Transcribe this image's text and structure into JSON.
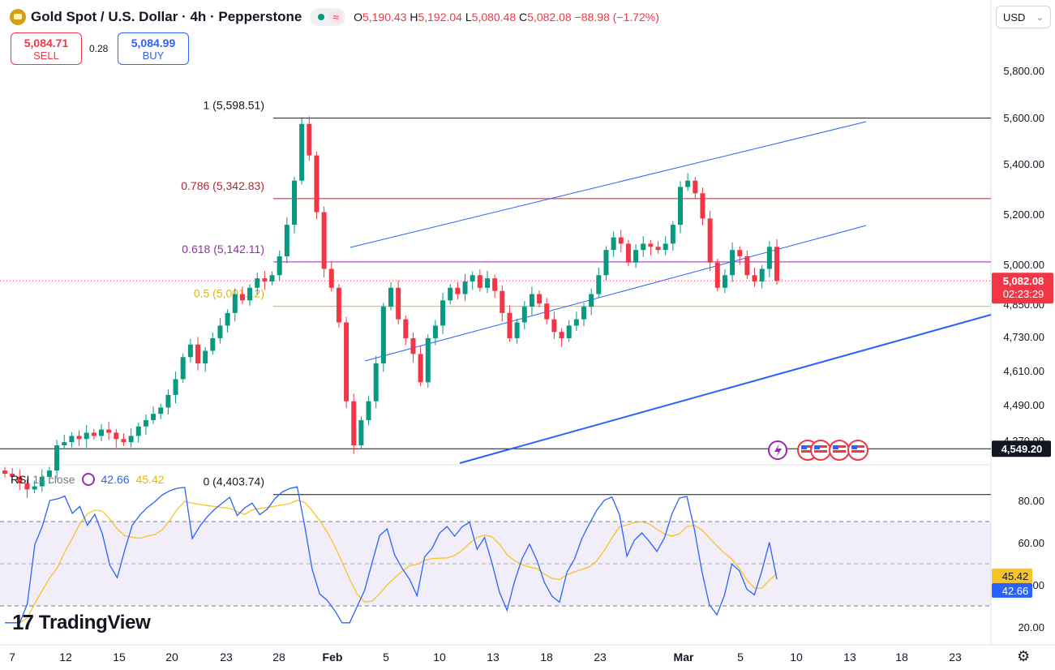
{
  "header": {
    "symbol": "Gold Spot / U.S. Dollar · 4h · Pepperstone",
    "wave_glyph": "≈",
    "open_label": "O",
    "open": "5,190.43",
    "high_label": "H",
    "high": "5,192.04",
    "low_label": "L",
    "low": "5,080.48",
    "close_label": "C",
    "close": "5,082.08",
    "change": "−88.98 (−1.72%)"
  },
  "trade": {
    "sell_price": "5,084.71",
    "sell_label": "SELL",
    "spread": "0.28",
    "buy_price": "5,084.99",
    "buy_label": "BUY"
  },
  "currency": {
    "label": "USD",
    "chevron": "⌄"
  },
  "colors": {
    "up": "#089981",
    "down": "#f23645",
    "rsi": "#2962ff",
    "rsi_ma": "#f7c325",
    "fib_0786": "#b22833",
    "fib_0618": "#9c27b0",
    "fib_05": "#e6b800",
    "channel": "#2962ff"
  },
  "chart_data": {
    "type": "candlestick",
    "x_ticks": [
      "7",
      "12",
      "15",
      "20",
      "23",
      "28",
      "Feb",
      "5",
      "10",
      "13",
      "18",
      "23",
      "Mar",
      "5",
      "10",
      "13",
      "18",
      "23"
    ],
    "price_ticks": [
      "5,800.00",
      "5,600.00",
      "5,400.00",
      "5,200.00",
      "4,850.00",
      "4,730.00",
      "4,610.00",
      "4,490.00",
      "4,370.00"
    ],
    "hidden_price_tick": "5,000.00",
    "last_price": "5,082.08",
    "countdown": "02:23:29",
    "marked_price": "4,549.20",
    "fib_levels": [
      {
        "label": "1 (5,598.51)",
        "value": 5598.51
      },
      {
        "label": "0.786 (5,342.83)",
        "value": 5342.83
      },
      {
        "label": "0.618 (5,142.11)",
        "value": 5142.11
      },
      {
        "label": "0.5 (5,001.12)",
        "value": 5001.12
      },
      {
        "label": "0 (4,403.74)",
        "value": 4403.74
      }
    ],
    "closes": [
      4470,
      4460,
      4440,
      4420,
      4430,
      4460,
      4480,
      4560,
      4570,
      4590,
      4580,
      4600,
      4590,
      4610,
      4600,
      4580,
      4570,
      4590,
      4620,
      4640,
      4660,
      4680,
      4720,
      4770,
      4840,
      4880,
      4820,
      4860,
      4900,
      4940,
      4980,
      5040,
      5020,
      5060,
      5090,
      5080,
      5100,
      5160,
      5260,
      5400,
      5580,
      5480,
      5300,
      5120,
      5060,
      4950,
      4700,
      4560,
      4640,
      4700,
      4820,
      5000,
      5060,
      4960,
      4900,
      4850,
      4760,
      4900,
      4940,
      5020,
      5060,
      5040,
      5080,
      5100,
      5060,
      5090,
      5050,
      4980,
      4900,
      4950,
      5000,
      5040,
      5010,
      4960,
      4920,
      4900,
      4940,
      4960,
      5000,
      5040,
      5100,
      5180,
      5220,
      5200,
      5140,
      5180,
      5200,
      5190,
      5180,
      5200,
      5260,
      5380,
      5400,
      5360,
      5280,
      5140,
      5060,
      5100,
      5180,
      5160,
      5100,
      5080,
      5120,
      5190,
      5082
    ],
    "rsi": {
      "label": "RSI",
      "params": "14 close",
      "value": "42.66",
      "ma_value": "45.42",
      "ticks": [
        "80.00",
        "60.00",
        "20.00"
      ],
      "hidden_tick": "40.00",
      "upper_band": 70,
      "lower_band": 30
    }
  },
  "watermark": "TradingView",
  "watermark_mark": "17",
  "settings_icon_glyph": "⚙"
}
